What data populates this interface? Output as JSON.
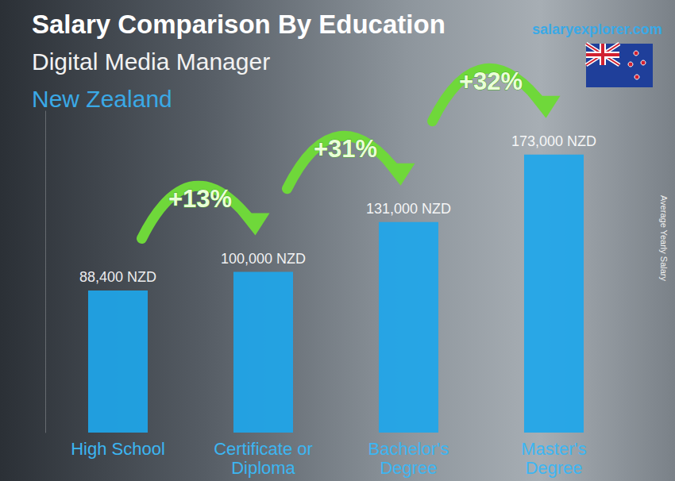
{
  "chart_data": {
    "type": "bar",
    "title": "Salary Comparison By Education",
    "subtitle": [
      "Digital Media Manager",
      "New Zealand"
    ],
    "source": "salaryexplorer.com",
    "ylabel": "Average Yearly Salary",
    "categories": [
      "High School",
      "Certificate or\nDiploma",
      "Bachelor's\nDegree",
      "Master's\nDegree"
    ],
    "values": [
      88400,
      100000,
      131000,
      173000
    ],
    "value_labels": [
      "88,400 NZD",
      "100,000 NZD",
      "131,000 NZD",
      "173,000 NZD"
    ],
    "annotations": [
      "+13%",
      "+31%",
      "+32%"
    ],
    "color": "#1ea6ea",
    "ylim": [
      0,
      200000
    ],
    "grid": false,
    "data_labels": true,
    "tick_labels": "x"
  }
}
